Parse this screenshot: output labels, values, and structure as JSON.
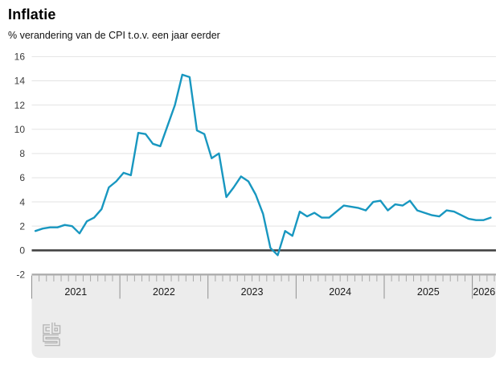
{
  "header": {
    "title": "Inflatie",
    "subtitle": "% verandering van de CPI t.o.v. een jaar eerder"
  },
  "footer": {
    "logo": "cbs-logo"
  },
  "chart_data": {
    "type": "line",
    "title": "Inflatie",
    "subtitle": "% verandering van de CPI t.o.v. een jaar eerder",
    "unit": "%",
    "frequency": "monthly",
    "x_start": "2021-01",
    "x_end": "2026-03",
    "x_years": [
      "2021",
      "2022",
      "2023",
      "2024",
      "2025",
      "2026"
    ],
    "ylim": [
      -2,
      16
    ],
    "yticks": [
      16,
      14,
      12,
      10,
      8,
      6,
      4,
      2,
      0,
      -2
    ],
    "grid": "horizontal",
    "legend": "none",
    "zero_line": true,
    "series": [
      {
        "name": "Inflatie (CPI, % t.o.v. een jaar eerder)",
        "values": [
          1.6,
          1.8,
          1.9,
          1.9,
          2.1,
          2.0,
          1.4,
          2.4,
          2.7,
          3.4,
          5.2,
          5.7,
          6.4,
          6.2,
          9.7,
          9.6,
          8.8,
          8.6,
          10.3,
          12.0,
          14.5,
          14.3,
          9.9,
          9.6,
          7.6,
          8.0,
          4.4,
          5.2,
          6.1,
          5.7,
          4.6,
          3.0,
          0.2,
          -0.4,
          1.6,
          1.2,
          3.2,
          2.8,
          3.1,
          2.7,
          2.7,
          3.2,
          3.7,
          3.6,
          3.5,
          3.3,
          4.0,
          4.1,
          3.3,
          3.8,
          3.7,
          4.1,
          3.3,
          3.1,
          2.9,
          2.8,
          3.3,
          3.2,
          2.9,
          2.6,
          2.5,
          2.5,
          2.7
        ]
      }
    ],
    "colors": {
      "line": "#1897c0",
      "grid": "#e3e3e3",
      "zero_line": "#454545",
      "panel_bg": "#ececec",
      "panel_border": "#a9a9a9",
      "tick_minor": "#a8a8a8",
      "tick_major": "#8f8f8f",
      "logo": "#b6b6b6"
    }
  }
}
